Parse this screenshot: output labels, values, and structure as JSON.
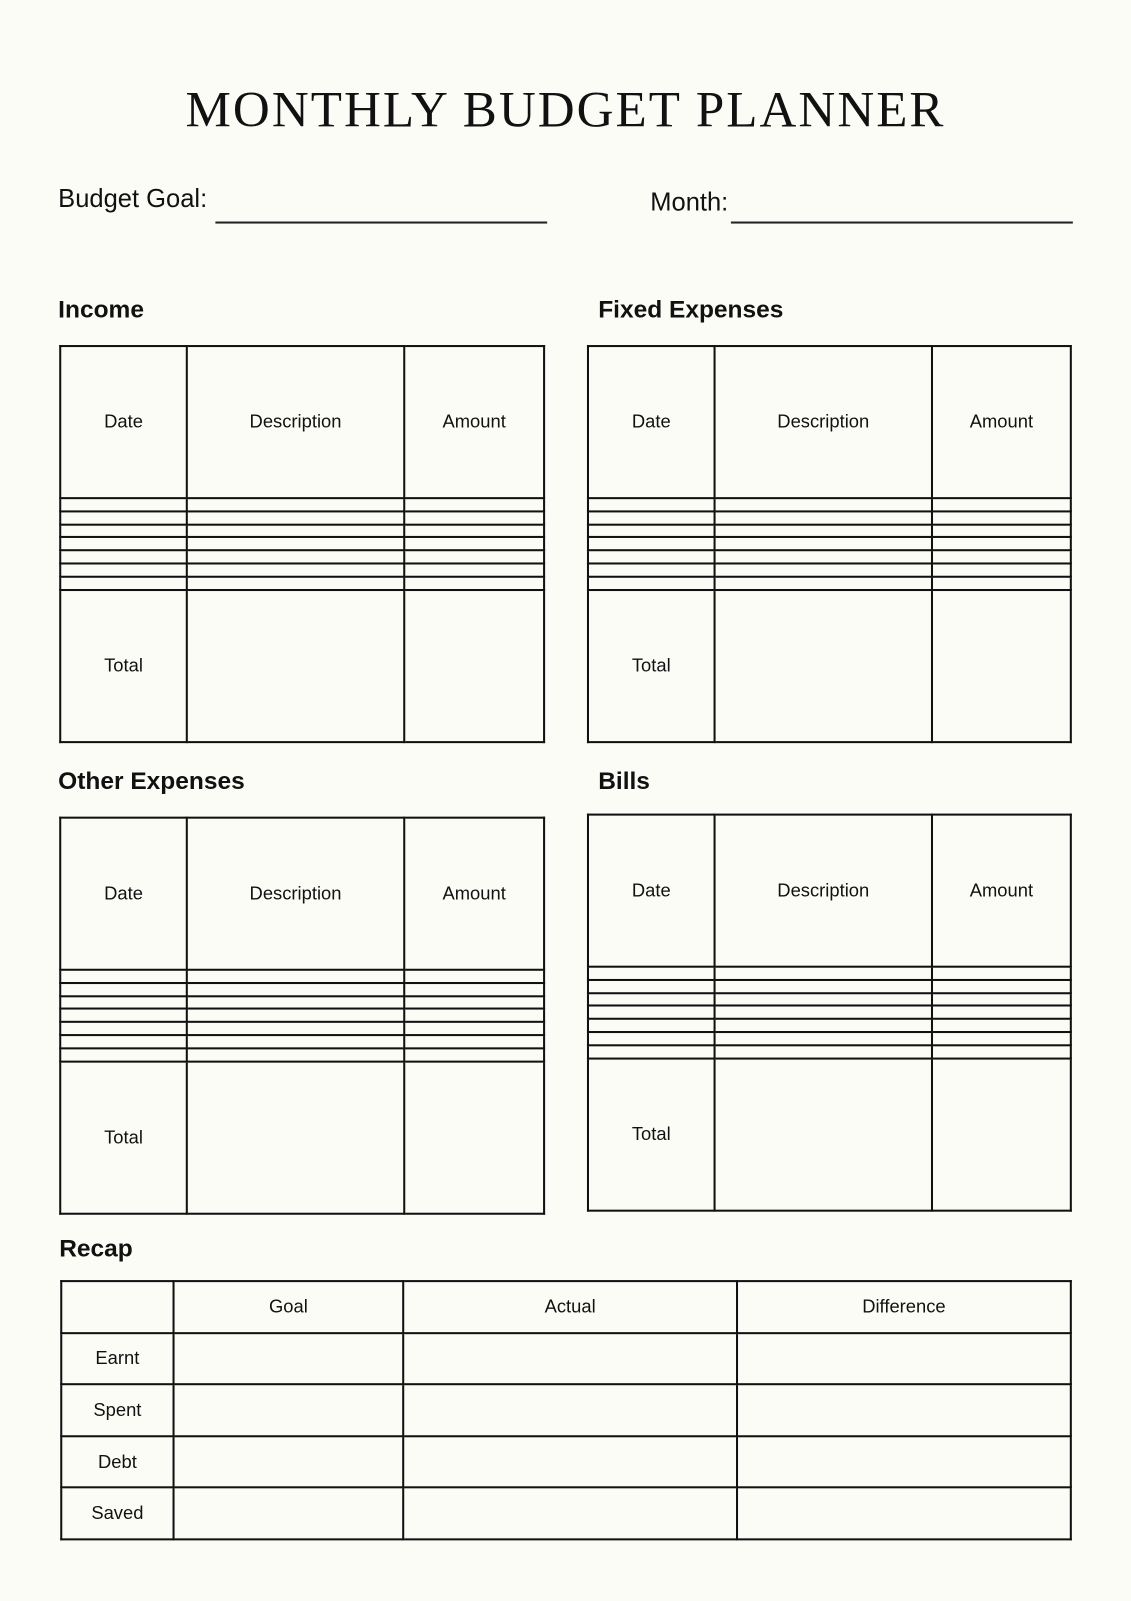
{
  "title": "MONTHLY BUDGET PLANNER",
  "fields": {
    "budget_goal_label": "Budget Goal:",
    "budget_goal_value": "",
    "month_label": "Month:",
    "month_value": ""
  },
  "sections": {
    "income": {
      "title": "Income",
      "columns": [
        "Date",
        "Description",
        "Amount"
      ],
      "blank_rows": 7,
      "total_label": "Total"
    },
    "fixed": {
      "title": "Fixed Expenses",
      "columns": [
        "Date",
        "Description",
        "Amount"
      ],
      "blank_rows": 7,
      "total_label": "Total"
    },
    "other": {
      "title": "Other Expenses",
      "columns": [
        "Date",
        "Description",
        "Amount"
      ],
      "blank_rows": 7,
      "total_label": "Total"
    },
    "bills": {
      "title": "Bills",
      "columns": [
        "Date",
        "Description",
        "Amount"
      ],
      "blank_rows": 7,
      "total_label": "Total"
    }
  },
  "recap": {
    "title": "Recap",
    "columns": [
      "",
      "Goal",
      "Actual",
      "Difference"
    ],
    "rows": [
      "Earnt",
      "Spent",
      "Debt",
      "Saved"
    ]
  }
}
